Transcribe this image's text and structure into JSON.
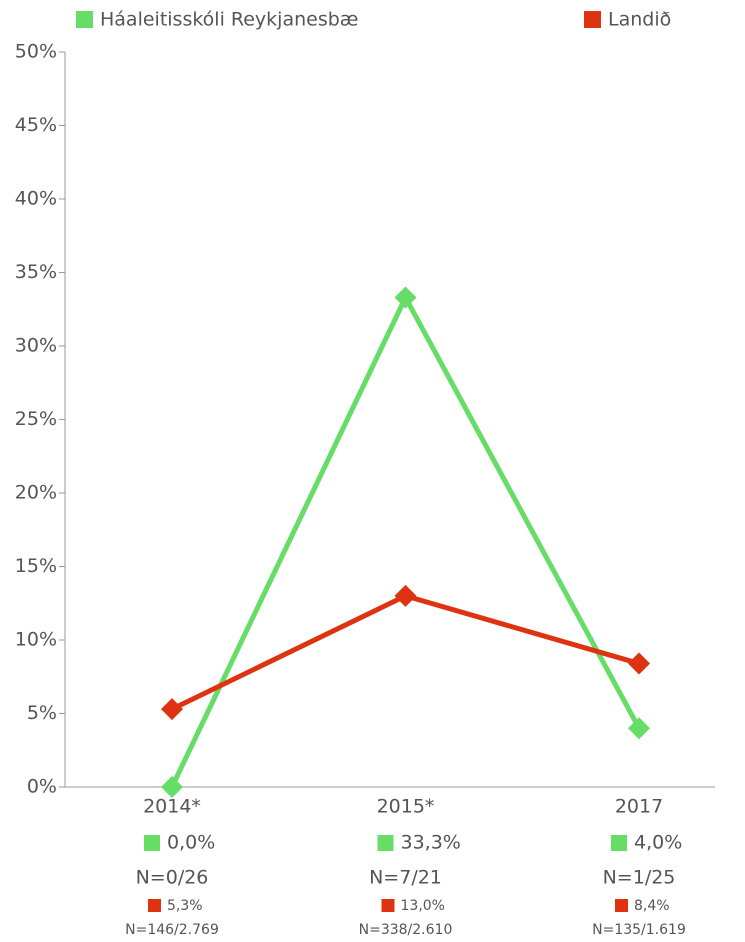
{
  "chart_data": {
    "type": "line",
    "categories": [
      "2014*",
      "2015*",
      "2017"
    ],
    "series": [
      {
        "name": "Háaleitisskóli Reykjanesbæ",
        "color": "#66dd66",
        "values": [
          0.0,
          33.3,
          4.0
        ],
        "value_labels": [
          "0,0%",
          "33,3%",
          "4,0%"
        ],
        "n_labels": [
          "N=0/26",
          "N=7/21",
          "N=1/25"
        ]
      },
      {
        "name": "Landið",
        "color": "#dd3311",
        "values": [
          5.3,
          13.0,
          8.4
        ],
        "value_labels": [
          "5,3%",
          "13,0%",
          "8,4%"
        ],
        "n_labels": [
          "N=146/2.769",
          "N=338/2.610",
          "N=135/1.619"
        ]
      }
    ],
    "ylim": [
      0,
      50
    ],
    "yticks": [
      {
        "value": 0,
        "label": "0%"
      },
      {
        "value": 5,
        "label": "5%"
      },
      {
        "value": 10,
        "label": "10%"
      },
      {
        "value": 15,
        "label": "15%"
      },
      {
        "value": 20,
        "label": "20%"
      },
      {
        "value": 25,
        "label": "25%"
      },
      {
        "value": 30,
        "label": "30%"
      },
      {
        "value": 35,
        "label": "35%"
      },
      {
        "value": 40,
        "label": "40%"
      },
      {
        "value": 45,
        "label": "45%"
      },
      {
        "value": 50,
        "label": "50%"
      }
    ],
    "grid": false
  }
}
